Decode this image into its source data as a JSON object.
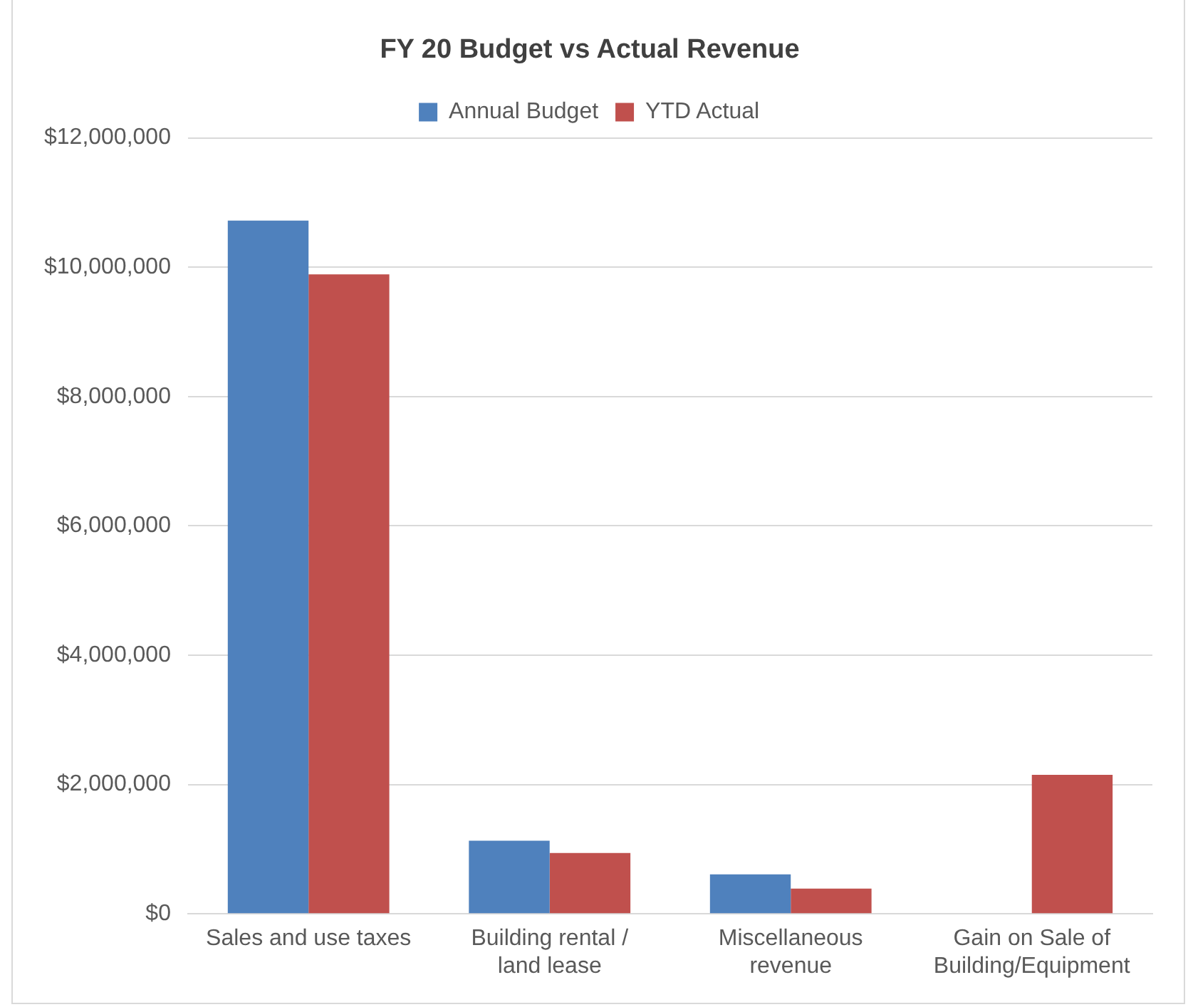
{
  "chart_data": {
    "type": "bar",
    "title": "FY 20 Budget vs Actual Revenue",
    "categories": [
      "Sales and use taxes",
      "Building rental / land lease",
      "Miscellaneous revenue",
      "Gain on Sale of Building/Equipment"
    ],
    "series": [
      {
        "name": "Annual Budget",
        "color": "#4f81bd",
        "values": [
          10720000,
          1130000,
          610000,
          null
        ]
      },
      {
        "name": "YTD Actual",
        "color": "#c0504d",
        "values": [
          9890000,
          940000,
          390000,
          2150000
        ]
      }
    ],
    "ylim": [
      0,
      12000000
    ],
    "yticks": [
      {
        "value": 0,
        "label": "$0"
      },
      {
        "value": 2000000,
        "label": "$2,000,000"
      },
      {
        "value": 4000000,
        "label": "$4,000,000"
      },
      {
        "value": 6000000,
        "label": "$6,000,000"
      },
      {
        "value": 8000000,
        "label": "$8,000,000"
      },
      {
        "value": 10000000,
        "label": "$10,000,000"
      },
      {
        "value": 12000000,
        "label": "$12,000,000"
      }
    ],
    "grid": "y",
    "legend": "top"
  }
}
